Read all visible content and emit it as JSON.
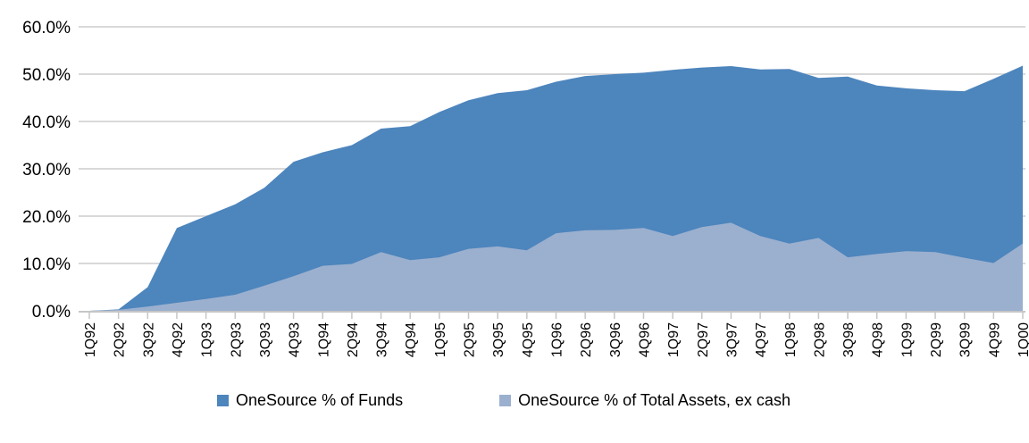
{
  "chart_data": {
    "type": "area",
    "title": "",
    "xlabel": "",
    "ylabel": "",
    "ylim": [
      0,
      60
    ],
    "grid": true,
    "legend_position": "bottom",
    "overlay": true,
    "ytick_labels": [
      "0.0%",
      "10.0%",
      "20.0%",
      "30.0%",
      "40.0%",
      "50.0%",
      "60.0%"
    ],
    "categories": [
      "1Q92",
      "2Q92",
      "3Q92",
      "4Q92",
      "1Q93",
      "2Q93",
      "3Q93",
      "4Q93",
      "1Q94",
      "2Q94",
      "3Q94",
      "4Q94",
      "1Q95",
      "2Q95",
      "3Q95",
      "4Q95",
      "1Q96",
      "2Q96",
      "3Q96",
      "4Q96",
      "1Q97",
      "2Q97",
      "3Q97",
      "4Q97",
      "1Q98",
      "2Q98",
      "3Q98",
      "4Q98",
      "1Q99",
      "2Q99",
      "3Q99",
      "4Q99",
      "1Q00"
    ],
    "series": [
      {
        "name": "OneSource % of Funds",
        "color": "#4D85BD",
        "values": [
          0,
          0.3,
          5.0,
          17.5,
          20.0,
          22.5,
          26.0,
          31.5,
          33.5,
          35.0,
          38.5,
          39.0,
          42.0,
          44.5,
          46.0,
          46.6,
          48.4,
          49.6,
          50.0,
          50.3,
          50.9,
          51.4,
          51.7,
          51.0,
          51.1,
          49.2,
          49.5,
          47.6,
          47.0,
          46.6,
          46.4,
          49.0,
          51.8
        ]
      },
      {
        "name": "OneSource % of Total Assets, ex cash",
        "color": "#9BB0CE",
        "values": [
          0,
          0.2,
          0.9,
          1.7,
          2.5,
          3.4,
          5.3,
          7.3,
          9.5,
          9.9,
          12.4,
          10.7,
          11.3,
          13.1,
          13.6,
          12.8,
          16.4,
          17.0,
          17.1,
          17.5,
          15.8,
          17.7,
          18.6,
          15.8,
          14.2,
          15.4,
          11.3,
          12.0,
          12.6,
          12.4,
          11.2,
          10.1,
          14.2
        ]
      }
    ]
  },
  "style_colors": {
    "gridline": "#D9D9D9",
    "axis": "#C6C6C6",
    "text": "#000000"
  }
}
